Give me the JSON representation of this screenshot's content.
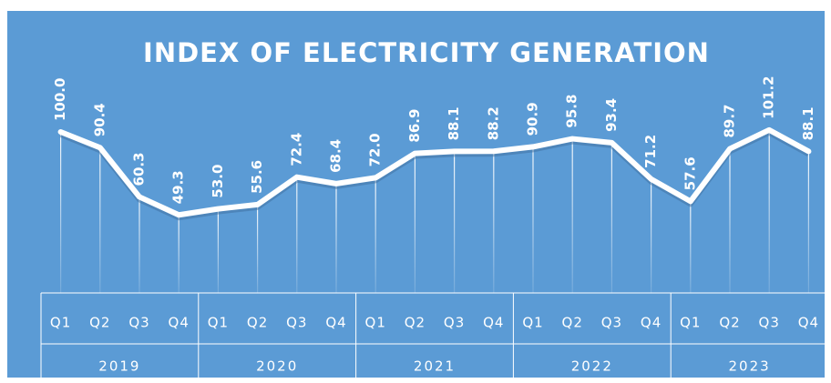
{
  "chart_data": {
    "type": "line",
    "title": "INDEX OF ELECTRICITY GENERATION",
    "categories": [
      "Q1",
      "Q2",
      "Q3",
      "Q4",
      "Q1",
      "Q2",
      "Q3",
      "Q4",
      "Q1",
      "Q2",
      "Q3",
      "Q4",
      "Q1",
      "Q2",
      "Q3",
      "Q4",
      "Q1",
      "Q2",
      "Q3",
      "Q4"
    ],
    "groups": [
      "2019",
      "2020",
      "2021",
      "2022",
      "2023"
    ],
    "values": [
      100.0,
      90.4,
      60.3,
      49.3,
      53.0,
      55.6,
      72.4,
      68.4,
      72.0,
      86.9,
      88.1,
      88.2,
      90.9,
      95.8,
      93.4,
      71.2,
      57.6,
      89.7,
      101.2,
      88.1
    ],
    "value_labels": [
      "100.0",
      "90.4",
      "60.3",
      "49.3",
      "53.0",
      "55.6",
      "72.4",
      "68.4",
      "72.0",
      "86.9",
      "88.1",
      "88.2",
      "90.9",
      "95.8",
      "93.4",
      "71.2",
      "57.6",
      "89.7",
      "101.2",
      "88.1"
    ],
    "color": "#ffffff",
    "background": "#5b9bd5"
  }
}
